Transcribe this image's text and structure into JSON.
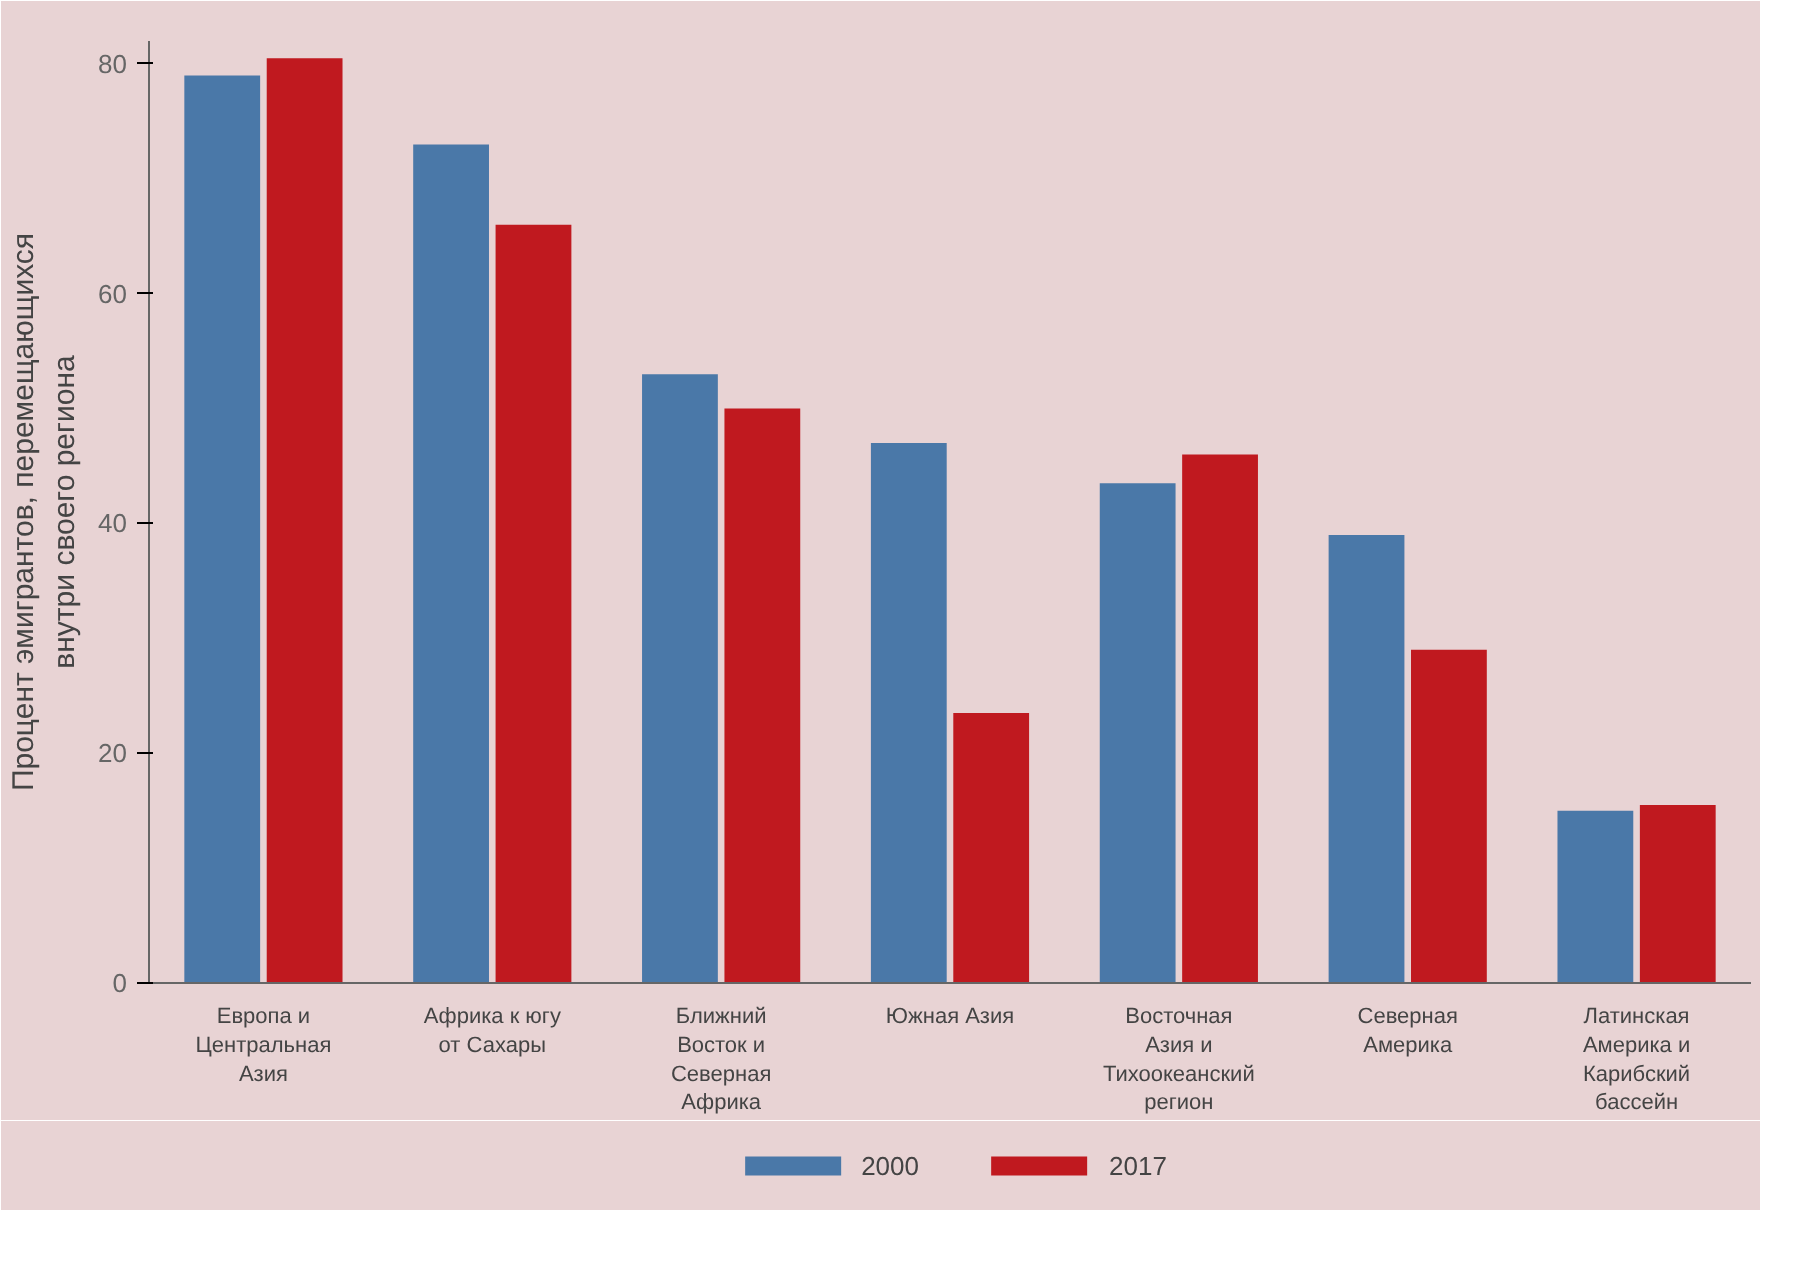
{
  "chart_data": {
    "type": "bar",
    "ylabel": "Процент эмигрантов, перемещающихся внутри своего региона",
    "categories": [
      "Европа и Центральная Азия",
      "Африка к югу от Сахары",
      "Ближний Восток и Северная Африка",
      "Южная Азия",
      "Восточная Азия и Тихоокеанский регион",
      "Северная Америка",
      "Латинская Америка и Карибский бассейн"
    ],
    "series": [
      {
        "name": "2000",
        "color": "#4a78a8",
        "values": [
          79,
          73,
          53,
          47,
          43.5,
          39,
          15
        ]
      },
      {
        "name": "2017",
        "color": "#c0191f",
        "values": [
          80.5,
          66,
          50,
          23.5,
          46,
          29,
          15.5
        ]
      }
    ],
    "ylim": [
      0,
      82
    ],
    "yticks": [
      0,
      20,
      40,
      60,
      80
    ],
    "grid": false,
    "legend": "bottom"
  }
}
